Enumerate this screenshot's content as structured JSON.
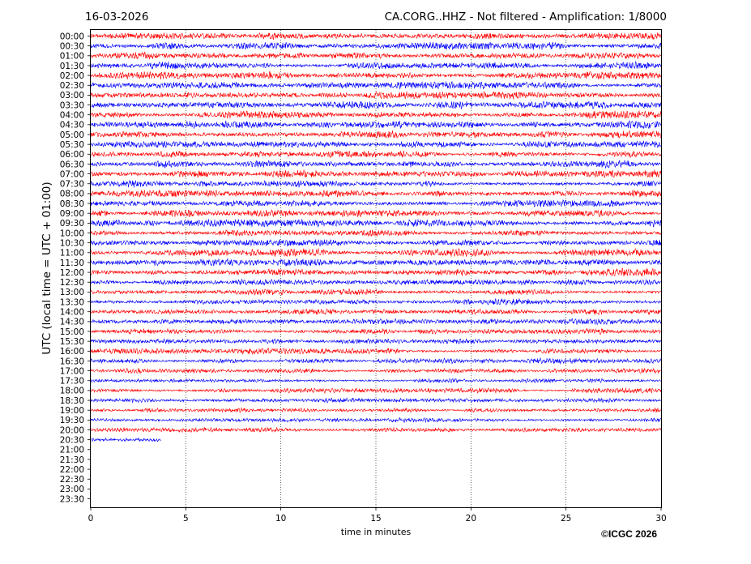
{
  "header": {
    "date": "16-03-2026",
    "title": "CA.CORG..HHZ - Not filtered - Amplification: 1/8000"
  },
  "footer": {
    "copyright": "©ICGC 2026"
  },
  "chart_data": {
    "type": "line",
    "title": "CA.CORG..HHZ - Not filtered - Amplification: 1/8000",
    "xlabel": "time in minutes",
    "ylabel": "UTC (local time = UTC + 01:00)",
    "xlim": [
      0,
      30
    ],
    "xticks": [
      "0",
      "5",
      "10",
      "15",
      "20",
      "25",
      "30"
    ],
    "row_labels": [
      "00:00",
      "00:30",
      "01:00",
      "01:30",
      "02:00",
      "02:30",
      "03:00",
      "03:30",
      "04:00",
      "04:30",
      "05:00",
      "05:30",
      "06:00",
      "06:30",
      "07:00",
      "07:30",
      "08:00",
      "08:30",
      "09:00",
      "09:30",
      "10:00",
      "10:30",
      "11:00",
      "11:30",
      "12:00",
      "12:30",
      "13:00",
      "13:30",
      "14:00",
      "14:30",
      "15:00",
      "15:30",
      "16:00",
      "16:30",
      "17:00",
      "17:30",
      "18:00",
      "18:30",
      "19:00",
      "19:30",
      "20:00",
      "20:30",
      "21:00",
      "21:30",
      "22:00",
      "22:30",
      "23:00",
      "23:30"
    ],
    "trace_colors": [
      "#ff0000",
      "#0000ff"
    ],
    "traces_recorded": 42,
    "last_trace_end_minutes": 3.7,
    "vertical_grid_minutes": [
      5,
      10,
      15,
      20,
      25
    ],
    "grid": "dotted vertical",
    "legend": "none"
  }
}
